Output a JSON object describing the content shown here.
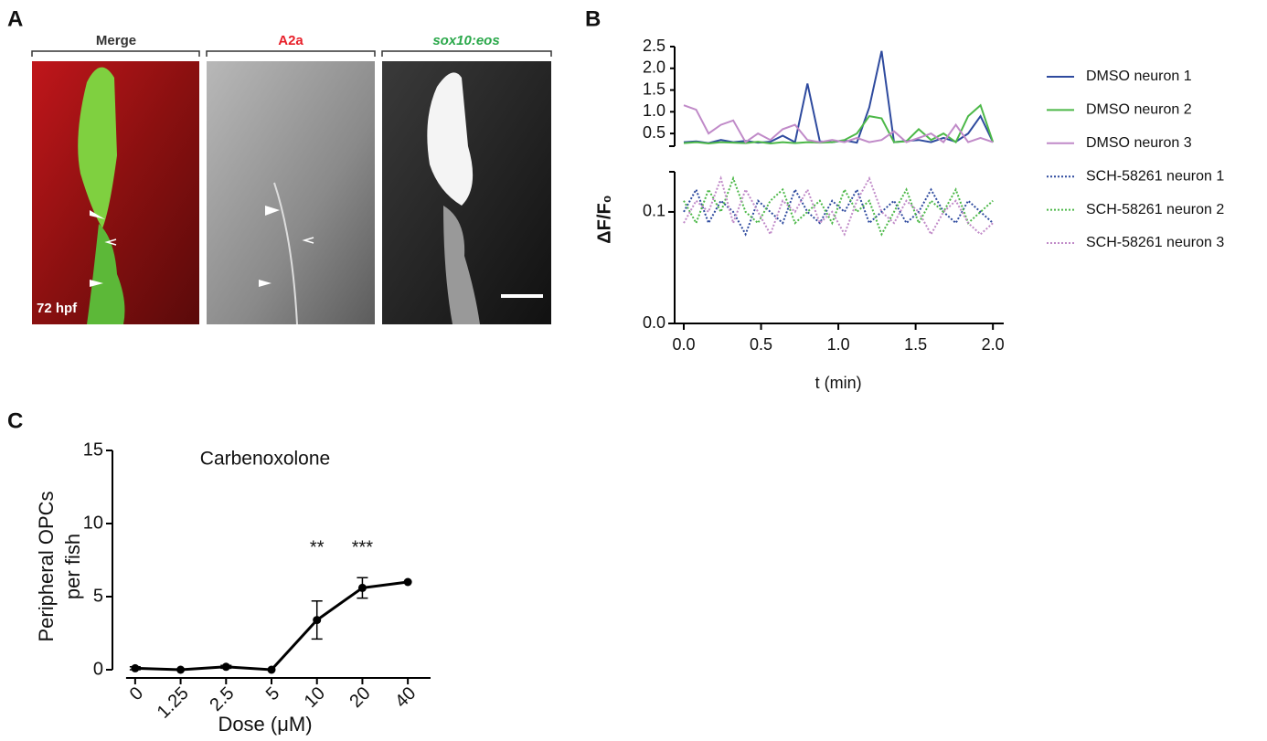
{
  "letters": [
    "A",
    "B",
    "C"
  ],
  "panel_a": {
    "titles": [
      "Merge",
      "A2a",
      "sox10:eos"
    ],
    "stage": "72 hpf"
  },
  "chart_data": [
    {
      "type": "line",
      "ylabel": "ΔF/F₀",
      "xlabel": "t (min)",
      "x": [
        0,
        0.08,
        0.16,
        0.24,
        0.32,
        0.4,
        0.48,
        0.56,
        0.64,
        0.72,
        0.8,
        0.88,
        0.96,
        1.04,
        1.12,
        1.2,
        1.28,
        1.36,
        1.44,
        1.52,
        1.6,
        1.68,
        1.76,
        1.84,
        1.92,
        2.0
      ],
      "xlim": [
        0,
        2.07
      ],
      "xticks": [
        {
          "value": 0,
          "label": "0.0"
        },
        0.5,
        {
          "value": 1,
          "label": "1.0"
        },
        1.5,
        {
          "value": 2,
          "label": "2.0"
        }
      ],
      "ylim": [
        0,
        0.136
      ],
      "yticks": [
        {
          "value": 0,
          "label": "0.0"
        },
        0.1
      ],
      "ylim_upper": [
        0.25,
        2.5
      ],
      "yticks_upper": [
        0.5,
        {
          "value": 1,
          "label": "1.0"
        },
        1.5,
        {
          "value": 2,
          "label": "2.0"
        },
        2.5
      ],
      "series": [
        {
          "name": "DMSO neuron 1",
          "color": "#2e4a9e",
          "axis": "upper",
          "linestyle": "solid",
          "values": [
            0.3,
            0.32,
            0.28,
            0.35,
            0.3,
            0.33,
            0.29,
            0.31,
            0.45,
            0.3,
            1.65,
            0.32,
            0.3,
            0.34,
            0.29,
            1.1,
            2.4,
            0.3,
            0.33,
            0.35,
            0.3,
            0.4,
            0.31,
            0.5,
            0.9,
            0.3
          ]
        },
        {
          "name": "DMSO neuron 2",
          "color": "#4cb848",
          "axis": "upper",
          "linestyle": "solid",
          "values": [
            0.28,
            0.3,
            0.27,
            0.3,
            0.29,
            0.28,
            0.31,
            0.27,
            0.3,
            0.28,
            0.3,
            0.29,
            0.3,
            0.35,
            0.5,
            0.9,
            0.85,
            0.3,
            0.32,
            0.6,
            0.35,
            0.5,
            0.3,
            0.9,
            1.15,
            0.3
          ]
        },
        {
          "name": "DMSO neuron 3",
          "color": "#c08ac8",
          "axis": "upper",
          "linestyle": "solid",
          "values": [
            1.15,
            1.05,
            0.5,
            0.7,
            0.8,
            0.3,
            0.5,
            0.35,
            0.6,
            0.7,
            0.35,
            0.3,
            0.35,
            0.3,
            0.4,
            0.3,
            0.35,
            0.55,
            0.3,
            0.4,
            0.5,
            0.3,
            0.7,
            0.3,
            0.4,
            0.3
          ]
        },
        {
          "name": "SCH-58261 neuron 1",
          "color": "#2e4a9e",
          "axis": "lower",
          "linestyle": "dotted",
          "values": [
            0.1,
            0.12,
            0.09,
            0.11,
            0.1,
            0.08,
            0.11,
            0.1,
            0.09,
            0.12,
            0.1,
            0.09,
            0.11,
            0.1,
            0.12,
            0.09,
            0.1,
            0.11,
            0.09,
            0.1,
            0.12,
            0.1,
            0.09,
            0.11,
            0.1,
            0.09
          ]
        },
        {
          "name": "SCH-58261 neuron 2",
          "color": "#4cb848",
          "axis": "lower",
          "linestyle": "dotted",
          "values": [
            0.11,
            0.09,
            0.12,
            0.1,
            0.13,
            0.1,
            0.09,
            0.11,
            0.12,
            0.09,
            0.1,
            0.11,
            0.09,
            0.12,
            0.1,
            0.11,
            0.08,
            0.1,
            0.12,
            0.09,
            0.11,
            0.1,
            0.12,
            0.09,
            0.1,
            0.11
          ]
        },
        {
          "name": "SCH-58261 neuron 3",
          "color": "#c08ac8",
          "axis": "lower",
          "linestyle": "dotted",
          "values": [
            0.09,
            0.11,
            0.1,
            0.13,
            0.09,
            0.12,
            0.1,
            0.08,
            0.11,
            0.1,
            0.12,
            0.09,
            0.1,
            0.08,
            0.11,
            0.13,
            0.1,
            0.09,
            0.11,
            0.1,
            0.08,
            0.1,
            0.11,
            0.09,
            0.08,
            0.09
          ]
        }
      ]
    },
    {
      "type": "line",
      "title": "Carbenoxolone",
      "ylabel": [
        "Peripheral OPCs",
        "per fish"
      ],
      "xlabel": "Dose (μM)",
      "categories": [
        "0",
        "1.25",
        "2.5",
        "5",
        "10",
        "20",
        "40"
      ],
      "values": [
        0.1,
        0,
        0.2,
        0,
        3.4,
        5.6,
        6.0
      ],
      "errors": [
        0.1,
        0,
        0.1,
        0,
        1.3,
        0.7,
        0
      ],
      "significance": [
        null,
        null,
        null,
        null,
        "**",
        "***",
        null
      ],
      "color": "#000000",
      "ylim": [
        0,
        15
      ],
      "yticks": [
        0,
        5,
        10,
        15
      ]
    }
  ]
}
